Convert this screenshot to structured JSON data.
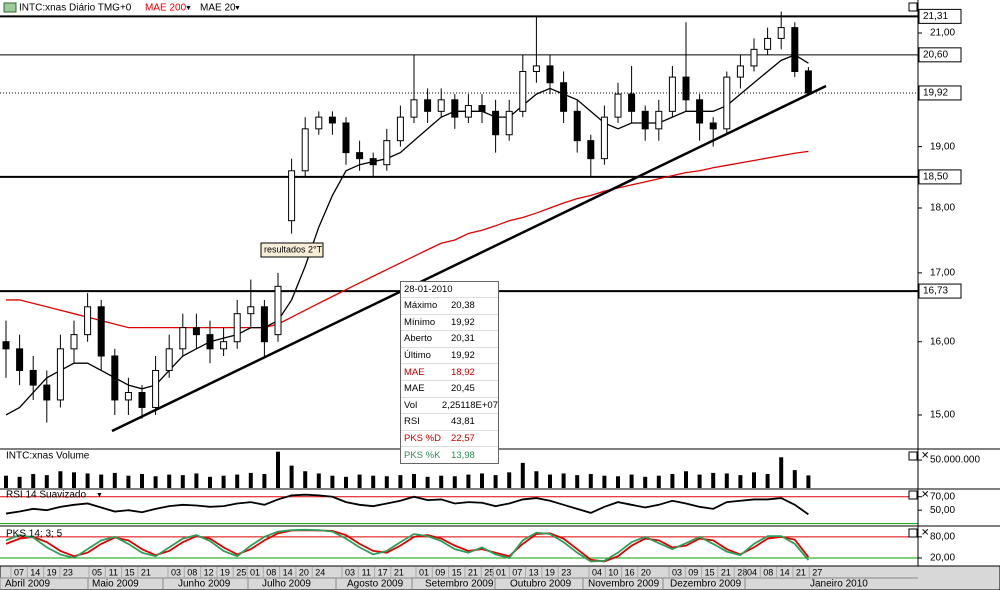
{
  "chart_data": [
    {
      "type": "candlestick",
      "title": "INTC:xnas Diário TMG+0",
      "log_scale": true,
      "ylim": [
        14.57,
        21.43
      ],
      "yticks": [
        {
          "value": 21,
          "label": "21,00"
        },
        {
          "value": 19,
          "label": "19,00"
        },
        {
          "value": 18,
          "label": "18,00"
        },
        {
          "value": 17,
          "label": "17,00"
        },
        {
          "value": 16,
          "label": "16,00"
        },
        {
          "value": 15,
          "label": "15,00"
        }
      ],
      "up_color": "#ffffff",
      "down_color": "#000000",
      "open": [
        16.0,
        15.9,
        15.6,
        15.4,
        15.2,
        15.9,
        16.1,
        16.5,
        15.8,
        15.2,
        15.3,
        15.1,
        15.6,
        15.9,
        16.2,
        16.1,
        15.9,
        16.0,
        16.4,
        16.5,
        16.1,
        17.8,
        18.6,
        19.3,
        19.5,
        19.4,
        18.9,
        18.8,
        18.7,
        19.1,
        19.5,
        19.8,
        19.6,
        19.8,
        19.5,
        19.7,
        19.6,
        19.2,
        19.6,
        20.3,
        20.4,
        20.1,
        19.6,
        19.1,
        18.8,
        19.5,
        19.9,
        19.6,
        19.3,
        19.6,
        20.2,
        19.8,
        19.4,
        19.3,
        20.2,
        20.4,
        20.7,
        20.9,
        21.1,
        20.31
      ],
      "high": [
        16.3,
        16.1,
        15.8,
        15.6,
        16.1,
        16.3,
        16.7,
        16.6,
        15.9,
        15.5,
        15.4,
        15.8,
        16.1,
        16.4,
        16.4,
        16.3,
        16.2,
        16.6,
        16.9,
        16.6,
        17.0,
        18.8,
        19.5,
        19.6,
        19.6,
        19.5,
        19.1,
        18.9,
        19.3,
        19.7,
        20.6,
        20.0,
        20.0,
        19.9,
        19.9,
        19.9,
        19.8,
        19.8,
        20.6,
        21.3,
        20.6,
        20.3,
        19.8,
        19.2,
        19.7,
        20.1,
        20.4,
        19.7,
        19.8,
        20.4,
        21.2,
        19.9,
        19.5,
        20.3,
        20.6,
        20.9,
        21.1,
        21.4,
        21.2,
        20.38
      ],
      "low": [
        15.5,
        15.4,
        15.2,
        14.9,
        15.1,
        15.7,
        16.0,
        15.6,
        15.0,
        15.0,
        14.95,
        15.0,
        15.5,
        15.8,
        15.9,
        15.7,
        15.8,
        15.9,
        16.2,
        15.8,
        16.0,
        17.6,
        18.5,
        19.2,
        19.2,
        18.7,
        18.6,
        18.5,
        18.6,
        19.0,
        19.4,
        19.4,
        19.5,
        19.3,
        19.4,
        19.4,
        18.9,
        19.1,
        19.5,
        20.1,
        19.9,
        19.4,
        18.9,
        18.5,
        18.7,
        19.4,
        19.4,
        19.1,
        19.1,
        19.5,
        19.6,
        19.1,
        19.0,
        19.2,
        20.0,
        20.3,
        20.6,
        20.7,
        20.2,
        19.92
      ],
      "close": [
        15.9,
        15.6,
        15.4,
        15.2,
        15.9,
        16.1,
        16.5,
        15.8,
        15.2,
        15.3,
        15.1,
        15.6,
        15.9,
        16.2,
        16.1,
        15.9,
        16.0,
        16.4,
        16.5,
        16.0,
        16.8,
        18.6,
        19.3,
        19.5,
        19.4,
        18.9,
        18.8,
        18.7,
        19.1,
        19.5,
        19.8,
        19.6,
        19.8,
        19.5,
        19.7,
        19.6,
        19.2,
        19.6,
        20.3,
        20.4,
        20.1,
        19.6,
        19.1,
        18.8,
        19.5,
        19.9,
        19.6,
        19.3,
        19.6,
        20.2,
        19.8,
        19.4,
        19.3,
        20.2,
        20.4,
        20.7,
        20.9,
        21.1,
        20.3,
        19.92
      ],
      "series": [
        {
          "name": "MAE 200",
          "color": "#e00000",
          "values": [
            16.6,
            16.6,
            16.55,
            16.5,
            16.45,
            16.4,
            16.35,
            16.3,
            16.25,
            16.2,
            16.2,
            16.2,
            16.2,
            16.2,
            16.2,
            16.2,
            16.2,
            16.2,
            16.2,
            16.2,
            16.25,
            16.35,
            16.45,
            16.55,
            16.65,
            16.75,
            16.85,
            16.95,
            17.05,
            17.15,
            17.25,
            17.35,
            17.45,
            17.5,
            17.6,
            17.65,
            17.72,
            17.8,
            17.85,
            17.92,
            18.0,
            18.08,
            18.15,
            18.2,
            18.27,
            18.32,
            18.37,
            18.42,
            18.47,
            18.52,
            18.57,
            18.6,
            18.65,
            18.69,
            18.73,
            18.77,
            18.81,
            18.85,
            18.89,
            18.92
          ]
        },
        {
          "name": "MAE 20",
          "color": "#000000",
          "values": [
            15.0,
            15.1,
            15.3,
            15.5,
            15.6,
            15.7,
            15.7,
            15.6,
            15.5,
            15.4,
            15.35,
            15.4,
            15.6,
            15.8,
            15.9,
            16.0,
            16.05,
            16.1,
            16.2,
            16.2,
            16.3,
            16.6,
            17.1,
            17.7,
            18.2,
            18.6,
            18.7,
            18.75,
            18.8,
            18.9,
            19.1,
            19.3,
            19.5,
            19.6,
            19.6,
            19.6,
            19.5,
            19.5,
            19.7,
            19.9,
            20.0,
            19.9,
            19.8,
            19.6,
            19.4,
            19.3,
            19.4,
            19.4,
            19.4,
            19.5,
            19.6,
            19.6,
            19.6,
            19.7,
            19.9,
            20.1,
            20.3,
            20.5,
            20.6,
            20.45
          ]
        }
      ],
      "levels": [
        {
          "value": 21.31,
          "label": "21,31",
          "style": "thick"
        },
        {
          "value": 20.6,
          "label": "20,60",
          "style": "thin"
        },
        {
          "value": 19.92,
          "label": "19,92",
          "style": "dotted"
        },
        {
          "value": 18.5,
          "label": "18,50",
          "style": "thick"
        },
        {
          "value": 16.73,
          "label": "16,73",
          "style": "thick"
        }
      ],
      "annotation": "resultados 2°T",
      "tooltip": {
        "date": "28-01-2010",
        "rows": [
          {
            "label": "Máximo",
            "value": "20,38"
          },
          {
            "label": "Mínimo",
            "value": "19,92"
          },
          {
            "label": "Aberto",
            "value": "20,31"
          },
          {
            "label": "Último",
            "value": "19,92"
          },
          {
            "label": "MAE",
            "value": "18,92",
            "color": "#c00000"
          },
          {
            "label": "MAE",
            "value": "20,45"
          },
          {
            "label": "Vol",
            "value": "2,25118E+07"
          },
          {
            "label": "RSI",
            "value": "43,81"
          },
          {
            "label": "PKS %D",
            "value": "22,57",
            "color": "#c00000"
          },
          {
            "label": "PKS %K",
            "value": "13,98",
            "color": "#2e8b57"
          }
        ]
      }
    },
    {
      "type": "bar",
      "title": "INTC:xnas Volume",
      "color": "#000000",
      "ylim": [
        0,
        68000000
      ],
      "yticks": [
        {
          "value": 50000000,
          "label": "50.000.000"
        }
      ],
      "values": [
        22000000,
        20000000,
        25000000,
        23000000,
        30000000,
        28000000,
        26000000,
        24000000,
        27000000,
        22000000,
        25000000,
        21000000,
        24000000,
        23000000,
        26000000,
        20000000,
        22000000,
        24000000,
        27000000,
        25000000,
        65000000,
        40000000,
        30000000,
        26000000,
        22000000,
        20000000,
        24000000,
        22000000,
        21000000,
        23000000,
        25000000,
        20000000,
        22000000,
        21000000,
        24000000,
        26000000,
        23000000,
        28000000,
        45000000,
        30000000,
        24000000,
        26000000,
        23000000,
        25000000,
        22000000,
        21000000,
        24000000,
        20000000,
        22000000,
        25000000,
        30000000,
        24000000,
        27000000,
        26000000,
        23000000,
        28000000,
        25000000,
        55000000,
        32000000,
        22511800
      ]
    },
    {
      "type": "line",
      "title": "RSI 14 Suavizado",
      "ylim": [
        28,
        80
      ],
      "yticks": [
        {
          "value": 70,
          "label": "70,00"
        },
        {
          "value": 50,
          "label": "50,00"
        }
      ],
      "levels": [
        {
          "value": 70,
          "color": "#e00000"
        },
        {
          "value": 30,
          "color": "#00a000"
        }
      ],
      "series": [
        {
          "color": "#000000",
          "values": [
            45,
            48,
            52,
            50,
            55,
            58,
            60,
            54,
            48,
            50,
            47,
            52,
            56,
            58,
            57,
            55,
            56,
            60,
            62,
            58,
            66,
            72,
            73,
            72,
            70,
            62,
            58,
            56,
            60,
            64,
            70,
            65,
            66,
            60,
            62,
            61,
            56,
            60,
            66,
            68,
            64,
            58,
            52,
            46,
            55,
            62,
            58,
            54,
            58,
            64,
            60,
            55,
            52,
            62,
            64,
            66,
            66,
            68,
            58,
            43.81
          ]
        }
      ]
    },
    {
      "type": "line",
      "title": "PKS 14; 3; 5",
      "ylim": [
        0,
        108
      ],
      "yticks": [
        {
          "value": 80,
          "label": "80,00"
        },
        {
          "value": 20,
          "label": "20,00"
        }
      ],
      "levels": [
        {
          "value": 80,
          "color": "#e00000"
        },
        {
          "value": 20,
          "color": "#00a000"
        }
      ],
      "series": [
        {
          "color": "#e00000",
          "values": [
            60,
            75,
            80,
            65,
            40,
            25,
            35,
            60,
            78,
            70,
            45,
            28,
            40,
            65,
            82,
            75,
            50,
            30,
            45,
            70,
            90,
            98,
            99,
            98,
            97,
            85,
            60,
            40,
            35,
            55,
            80,
            85,
            75,
            55,
            40,
            45,
            35,
            25,
            60,
            88,
            90,
            75,
            45,
            15,
            10,
            25,
            55,
            75,
            70,
            50,
            55,
            75,
            70,
            45,
            30,
            50,
            75,
            80,
            72,
            22.57
          ]
        },
        {
          "color": "#2e9e5b",
          "values": [
            70,
            85,
            78,
            50,
            30,
            20,
            45,
            70,
            80,
            60,
            35,
            25,
            50,
            75,
            85,
            68,
            40,
            25,
            55,
            80,
            95,
            99,
            100,
            99,
            95,
            75,
            50,
            30,
            40,
            65,
            88,
            82,
            68,
            45,
            35,
            50,
            30,
            20,
            70,
            92,
            88,
            65,
            35,
            10,
            12,
            35,
            65,
            80,
            62,
            45,
            62,
            80,
            60,
            38,
            28,
            60,
            82,
            82,
            60,
            13.98
          ]
        }
      ]
    }
  ],
  "date_axis": {
    "months": [
      {
        "label": "Abril 2009",
        "days": [
          "07",
          "14",
          "19",
          "23"
        ]
      },
      {
        "label": "Maio 2009",
        "days": [
          "05",
          "11",
          "15",
          "21"
        ]
      },
      {
        "label": "Junho 2009",
        "days": [
          "03",
          "08",
          "12",
          "19",
          "25"
        ]
      },
      {
        "label": "Julho 2009",
        "days": [
          "01",
          "08",
          "14",
          "20",
          "24"
        ]
      },
      {
        "label": "Agosto 2009",
        "days": [
          "03",
          "11",
          "17",
          "21"
        ]
      },
      {
        "label": "Setembro 2009",
        "days": [
          "01",
          "09",
          "15",
          "21",
          "25"
        ]
      },
      {
        "label": "Outubro 2009",
        "days": [
          "01",
          "07",
          "13",
          "19",
          "23"
        ]
      },
      {
        "label": "Novembro 2009",
        "days": [
          "04",
          "10",
          "16",
          "20"
        ]
      },
      {
        "label": "Dezembro 2009",
        "days": [
          "03",
          "09",
          "15",
          "21",
          "28"
        ]
      },
      {
        "label": "Janeiro 2010",
        "days": [
          "04",
          "08",
          "14",
          "21",
          "27"
        ]
      }
    ]
  }
}
